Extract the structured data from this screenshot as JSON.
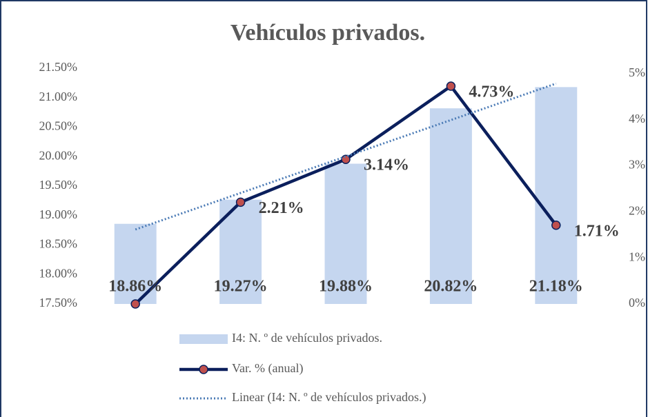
{
  "chart_data": {
    "type": "bar",
    "title": "Vehículos privados.",
    "series": [
      {
        "name": "I4: N. º de vehículos privados.",
        "type": "bar",
        "color": "#c5d6ef",
        "axis": "y",
        "values": [
          18.86,
          19.27,
          19.88,
          20.82,
          21.18
        ],
        "value_labels": [
          "18.86%",
          "19.27%",
          "19.88%",
          "20.82%",
          "21.18%"
        ]
      },
      {
        "name": "Var. % (anual)",
        "type": "line",
        "color": "#0b1f5c",
        "marker_color": "#c0504d",
        "axis": "y2",
        "values": [
          0,
          2.21,
          3.14,
          4.73,
          1.71
        ],
        "value_labels": [
          null,
          "2.21%",
          "3.14%",
          "4.73%",
          "1.71%"
        ]
      }
    ],
    "trendline": {
      "name": "Linear (I4: N. º de vehículos privados.)",
      "of_series": 0,
      "color": "#4a7ab5"
    },
    "ylim": [
      17.5,
      21.5
    ],
    "yticks": [
      {
        "value": 17.5,
        "label": "17.50%"
      },
      {
        "value": 18,
        "label": "18.00%"
      },
      {
        "value": 18.5,
        "label": "18.50%"
      },
      {
        "value": 19,
        "label": "19.00%"
      },
      {
        "value": 19.5,
        "label": "19.50%"
      },
      {
        "value": 20,
        "label": "20.00%"
      },
      {
        "value": 20.5,
        "label": "20.50%"
      },
      {
        "value": 21,
        "label": "21.00%"
      },
      {
        "value": 21.5,
        "label": "21.50%"
      }
    ],
    "y2lim": [
      0,
      5
    ],
    "y2ticks": [
      {
        "value": 0,
        "label": "0%"
      },
      {
        "value": 1,
        "label": "1%"
      },
      {
        "value": 2,
        "label": "2%"
      },
      {
        "value": 3,
        "label": "3%"
      },
      {
        "value": 4,
        "label": "4%"
      },
      {
        "value": 5,
        "label": "5%"
      }
    ],
    "legend": "bottom"
  }
}
